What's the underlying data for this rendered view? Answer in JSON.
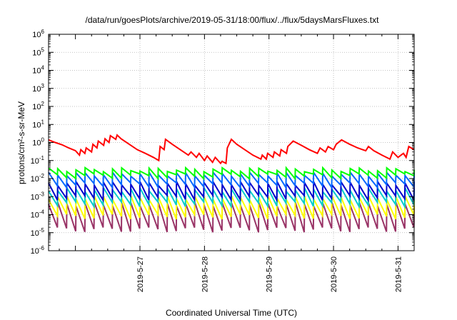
{
  "chart_data": {
    "type": "line",
    "title": "/data/run/goesPlots/archive/2019-05-31/18:00/flux/../flux/5daysMarsFluxes.txt",
    "xlabel": "Coordinated Universal Time (UTC)",
    "ylabel": "protons/cm²-s-sr-MeV",
    "y_scale": "log",
    "ylim": [
      1e-06,
      1000000.0
    ],
    "x_start": "2019-05-26T02:00",
    "x_end": "2019-05-31T18:00",
    "x_ticks": [
      "2019-5-27",
      "2019-5-28",
      "2019-5-29",
      "2019-5-30",
      "2019-5-31"
    ],
    "y_ticks": [
      {
        "base": "10",
        "exp": "-6"
      },
      {
        "base": "10",
        "exp": "-5"
      },
      {
        "base": "10",
        "exp": "-4"
      },
      {
        "base": "10",
        "exp": "-3"
      },
      {
        "base": "10",
        "exp": "-2"
      },
      {
        "base": "10",
        "exp": "-1"
      },
      {
        "base": "10",
        "exp": "0"
      },
      {
        "base": "10",
        "exp": "1"
      },
      {
        "base": "10",
        "exp": "2"
      },
      {
        "base": "10",
        "exp": "3"
      },
      {
        "base": "10",
        "exp": "4"
      },
      {
        "base": "10",
        "exp": "5"
      },
      {
        "base": "10",
        "exp": "6"
      }
    ],
    "grid": true,
    "series": [
      {
        "color": "#ff0000",
        "x": [
          "2019-05-26T02:00",
          "2019-05-26T04:30",
          "2019-05-26T07:00",
          "2019-05-26T09:30",
          "2019-05-26T12:00",
          "2019-05-26T13:30",
          "2019-05-26T14:00",
          "2019-05-26T15:30",
          "2019-05-26T16:00",
          "2019-05-26T18:00",
          "2019-05-26T18:30",
          "2019-05-26T20:00",
          "2019-05-26T20:30",
          "2019-05-26T22:30",
          "2019-05-26T23:00",
          "2019-05-27T00:30",
          "2019-05-27T01:00",
          "2019-05-27T03:00",
          "2019-05-27T03:30",
          "2019-05-27T05:00",
          "2019-05-27T08:00",
          "2019-05-27T11:00",
          "2019-05-27T14:00",
          "2019-05-27T17:00",
          "2019-05-27T19:00",
          "2019-05-27T19:30",
          "2019-05-27T21:00",
          "2019-05-27T21:30",
          "2019-05-28T00:00",
          "2019-05-28T03:00",
          "2019-05-28T06:00",
          "2019-05-28T07:00",
          "2019-05-28T09:00",
          "2019-05-28T10:00",
          "2019-05-28T12:00",
          "2019-05-28T13:00",
          "2019-05-28T15:00",
          "2019-05-28T16:00",
          "2019-05-28T18:00",
          "2019-05-28T18:30",
          "2019-05-28T20:00",
          "2019-05-28T20:30",
          "2019-05-28T22:00",
          "2019-05-29T00:00",
          "2019-05-29T03:00",
          "2019-05-29T06:00",
          "2019-05-29T09:00",
          "2019-05-29T09:30",
          "2019-05-29T11:00",
          "2019-05-29T11:30",
          "2019-05-29T13:30",
          "2019-05-29T14:00",
          "2019-05-29T16:00",
          "2019-05-29T16:30",
          "2019-05-29T18:30",
          "2019-05-29T19:00",
          "2019-05-29T21:00",
          "2019-05-30T00:00",
          "2019-05-30T03:00",
          "2019-05-30T06:00",
          "2019-05-30T07:00",
          "2019-05-30T09:00",
          "2019-05-30T10:00",
          "2019-05-30T12:00",
          "2019-05-30T13:00",
          "2019-05-30T15:00",
          "2019-05-30T18:00",
          "2019-05-30T21:00",
          "2019-05-31T00:00",
          "2019-05-31T01:00",
          "2019-05-31T03:00",
          "2019-05-31T06:00",
          "2019-05-31T09:00",
          "2019-05-31T10:00",
          "2019-05-31T12:00",
          "2019-05-31T14:00",
          "2019-05-31T15:00",
          "2019-05-31T16:00",
          "2019-05-31T18:00"
        ],
        "y": [
          1.4,
          1.0,
          0.75,
          0.5,
          0.35,
          0.2,
          0.4,
          0.25,
          0.5,
          0.3,
          0.8,
          0.5,
          1.2,
          0.7,
          1.6,
          1.0,
          2.4,
          1.5,
          2.6,
          1.6,
          0.8,
          0.4,
          0.25,
          0.15,
          0.1,
          0.6,
          0.4,
          1.5,
          0.8,
          0.4,
          0.2,
          0.3,
          0.15,
          0.25,
          0.1,
          0.18,
          0.08,
          0.15,
          0.07,
          0.09,
          0.07,
          0.5,
          1.5,
          0.8,
          0.4,
          0.2,
          0.12,
          0.2,
          0.12,
          0.25,
          0.15,
          0.3,
          0.18,
          0.4,
          0.25,
          0.6,
          1.2,
          0.7,
          0.4,
          0.25,
          0.5,
          0.3,
          0.6,
          0.4,
          0.8,
          1.4,
          0.8,
          0.5,
          0.35,
          0.6,
          0.35,
          0.2,
          0.12,
          0.3,
          0.15,
          0.25,
          0.15,
          0.6,
          0.4
        ]
      },
      {
        "color": "#00ff00",
        "x": [
          "2019-05-26T02:00",
          "2019-05-31T18:00"
        ],
        "peaks": 40,
        "high": 0.032,
        "low": 0.014
      },
      {
        "color": "#0066ff",
        "x": [
          "2019-05-26T02:00",
          "2019-05-31T18:00"
        ],
        "peaks": 40,
        "high": 0.018,
        "low": 0.0045
      },
      {
        "color": "#0000cc",
        "x": [
          "2019-05-26T02:00",
          "2019-05-31T18:00"
        ],
        "peaks": 40,
        "high": 0.0055,
        "low": 0.0009
      },
      {
        "color": "#00cccc",
        "x": [
          "2019-05-26T02:00",
          "2019-05-31T18:00"
        ],
        "peaks": 40,
        "high": 0.0025,
        "low": 0.0004
      },
      {
        "color": "#ffff00",
        "x": [
          "2019-05-26T02:00",
          "2019-05-31T18:00"
        ],
        "peaks": 40,
        "high": 0.0009,
        "low": 8e-05
      },
      {
        "color": "#993366",
        "x": [
          "2019-05-26T02:00",
          "2019-05-31T18:00"
        ],
        "peaks": 40,
        "high": 0.0004,
        "low": 1.5e-05
      }
    ]
  }
}
